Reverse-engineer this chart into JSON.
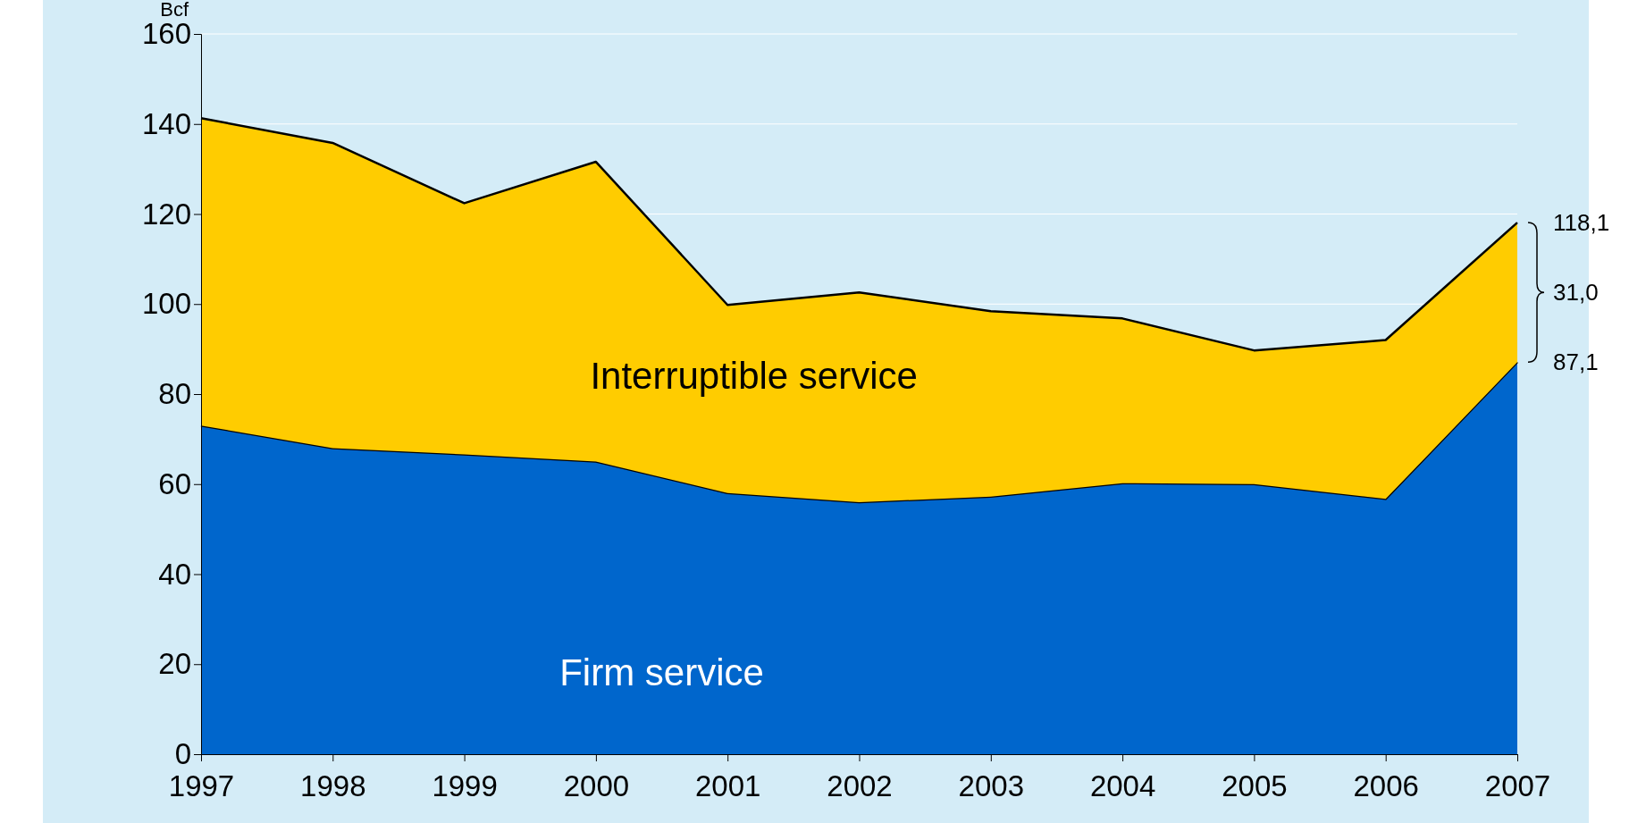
{
  "chart_data": {
    "type": "area",
    "stacked": true,
    "ylabel": "Bcf",
    "categories": [
      "1997",
      "1998",
      "1999",
      "2000",
      "2001",
      "2002",
      "2003",
      "2004",
      "2005",
      "2006",
      "2007"
    ],
    "series": [
      {
        "name": "Firm service",
        "color": "#0066cc",
        "values": [
          73,
          68,
          66.6,
          65,
          58,
          56,
          57.2,
          60.2,
          60,
          56.7,
          87.1
        ]
      },
      {
        "name": "Interruptible service",
        "color": "#ffcc00",
        "values": [
          68.3,
          67.8,
          55.8,
          66.6,
          41.8,
          46.6,
          41.2,
          36.6,
          29.7,
          35.3,
          31.0
        ]
      }
    ],
    "ylim": [
      0,
      160
    ],
    "yticks": [
      0,
      20,
      40,
      60,
      80,
      100,
      120,
      140,
      160
    ],
    "grid": "y",
    "annotations": [
      {
        "text": "118,1",
        "x": "2007",
        "y": 118.1
      },
      {
        "text": "31,0",
        "x": "2007",
        "y": 102.6
      },
      {
        "text": "87,1",
        "x": "2007",
        "y": 87.1
      }
    ]
  }
}
